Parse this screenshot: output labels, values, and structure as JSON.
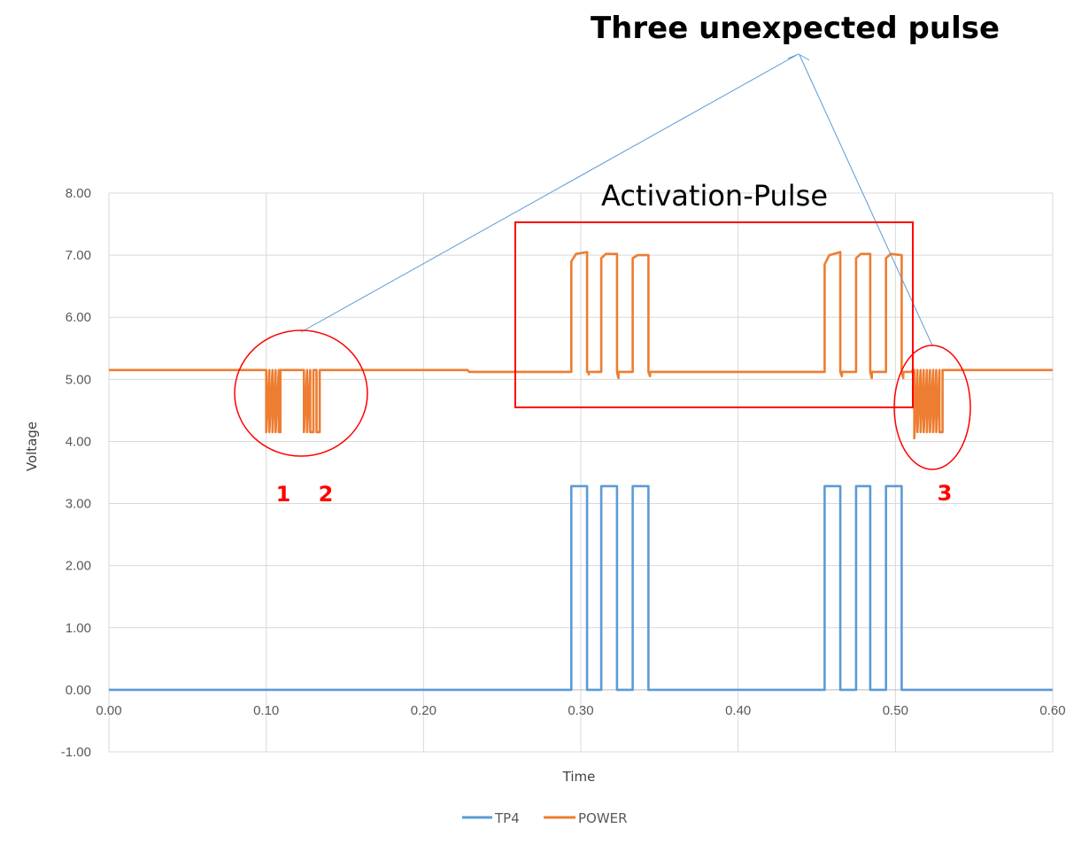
{
  "chart_data": {
    "type": "line",
    "title": "",
    "xlabel": "Time",
    "ylabel": "Voltage",
    "xlim": [
      0,
      0.6
    ],
    "ylim": [
      -1,
      8
    ],
    "x_ticks": [
      "0.00",
      "0.10",
      "0.20",
      "0.30",
      "0.40",
      "0.50",
      "0.60"
    ],
    "y_ticks": [
      "8.00",
      "7.00",
      "6.00",
      "5.00",
      "4.00",
      "3.00",
      "2.00",
      "1.00",
      "0.00",
      "-1.00"
    ],
    "grid": true,
    "legend_position": "bottom",
    "series": [
      {
        "name": "TP4",
        "color": "#5b9bd5",
        "points": [
          [
            0.0,
            0.0
          ],
          [
            0.294,
            0.0
          ],
          [
            0.294,
            3.28
          ],
          [
            0.304,
            3.28
          ],
          [
            0.304,
            0.0
          ],
          [
            0.313,
            0.0
          ],
          [
            0.313,
            3.28
          ],
          [
            0.323,
            3.28
          ],
          [
            0.323,
            0.0
          ],
          [
            0.333,
            0.0
          ],
          [
            0.333,
            3.28
          ],
          [
            0.343,
            3.28
          ],
          [
            0.343,
            0.0
          ],
          [
            0.455,
            0.0
          ],
          [
            0.455,
            3.28
          ],
          [
            0.465,
            3.28
          ],
          [
            0.465,
            0.0
          ],
          [
            0.475,
            0.0
          ],
          [
            0.475,
            3.28
          ],
          [
            0.484,
            3.28
          ],
          [
            0.484,
            0.0
          ],
          [
            0.494,
            0.0
          ],
          [
            0.494,
            3.28
          ],
          [
            0.504,
            3.28
          ],
          [
            0.504,
            0.0
          ],
          [
            0.6,
            0.0
          ]
        ]
      },
      {
        "name": "POWER",
        "color": "#ed7d31",
        "points": [
          [
            0.0,
            5.15
          ],
          [
            0.1,
            5.15
          ],
          [
            0.1,
            4.15
          ],
          [
            0.102,
            5.15
          ],
          [
            0.102,
            4.15
          ],
          [
            0.104,
            5.15
          ],
          [
            0.104,
            4.15
          ],
          [
            0.106,
            5.15
          ],
          [
            0.106,
            4.15
          ],
          [
            0.108,
            5.15
          ],
          [
            0.108,
            4.15
          ],
          [
            0.109,
            4.15
          ],
          [
            0.109,
            5.15
          ],
          [
            0.124,
            5.15
          ],
          [
            0.124,
            4.15
          ],
          [
            0.126,
            5.15
          ],
          [
            0.126,
            4.15
          ],
          [
            0.128,
            5.15
          ],
          [
            0.128,
            4.15
          ],
          [
            0.13,
            4.15
          ],
          [
            0.13,
            5.15
          ],
          [
            0.132,
            5.15
          ],
          [
            0.132,
            4.15
          ],
          [
            0.134,
            4.15
          ],
          [
            0.134,
            5.15
          ],
          [
            0.228,
            5.15
          ],
          [
            0.229,
            5.12
          ],
          [
            0.294,
            5.12
          ],
          [
            0.294,
            6.9
          ],
          [
            0.297,
            7.02
          ],
          [
            0.304,
            7.05
          ],
          [
            0.304,
            5.12
          ],
          [
            0.305,
            5.12
          ],
          [
            0.305,
            5.08
          ],
          [
            0.305,
            5.12
          ],
          [
            0.313,
            5.12
          ],
          [
            0.313,
            6.95
          ],
          [
            0.316,
            7.02
          ],
          [
            0.323,
            7.02
          ],
          [
            0.323,
            5.12
          ],
          [
            0.324,
            5.02
          ],
          [
            0.324,
            5.12
          ],
          [
            0.333,
            5.12
          ],
          [
            0.333,
            6.95
          ],
          [
            0.336,
            7.0
          ],
          [
            0.343,
            7.0
          ],
          [
            0.343,
            5.12
          ],
          [
            0.344,
            5.05
          ],
          [
            0.344,
            5.12
          ],
          [
            0.455,
            5.12
          ],
          [
            0.455,
            6.85
          ],
          [
            0.458,
            7.0
          ],
          [
            0.465,
            7.05
          ],
          [
            0.465,
            5.12
          ],
          [
            0.466,
            5.05
          ],
          [
            0.466,
            5.12
          ],
          [
            0.475,
            5.12
          ],
          [
            0.475,
            6.95
          ],
          [
            0.478,
            7.02
          ],
          [
            0.484,
            7.02
          ],
          [
            0.484,
            5.12
          ],
          [
            0.485,
            5.02
          ],
          [
            0.485,
            5.12
          ],
          [
            0.494,
            5.12
          ],
          [
            0.494,
            6.95
          ],
          [
            0.497,
            7.02
          ],
          [
            0.504,
            7.0
          ],
          [
            0.504,
            5.12
          ],
          [
            0.505,
            5.02
          ],
          [
            0.505,
            5.12
          ],
          [
            0.51,
            5.12
          ],
          [
            0.511,
            5.15
          ],
          [
            0.512,
            5.15
          ],
          [
            0.512,
            4.05
          ],
          [
            0.514,
            5.15
          ],
          [
            0.514,
            4.15
          ],
          [
            0.516,
            5.15
          ],
          [
            0.516,
            4.15
          ],
          [
            0.518,
            5.15
          ],
          [
            0.518,
            4.15
          ],
          [
            0.52,
            5.15
          ],
          [
            0.52,
            4.15
          ],
          [
            0.522,
            5.15
          ],
          [
            0.522,
            4.15
          ],
          [
            0.524,
            5.15
          ],
          [
            0.524,
            4.15
          ],
          [
            0.526,
            5.15
          ],
          [
            0.526,
            4.15
          ],
          [
            0.528,
            5.15
          ],
          [
            0.528,
            4.15
          ],
          [
            0.53,
            4.15
          ],
          [
            0.53,
            5.15
          ],
          [
            0.6,
            5.15
          ]
        ]
      }
    ],
    "annotations": {
      "headline": "Three unexpected pulse",
      "box_label": "Activation-Pulse",
      "markers": [
        "1",
        "2",
        "3"
      ],
      "annotation_color": "#ff0000",
      "arrow_color": "#5b9bd5"
    }
  }
}
